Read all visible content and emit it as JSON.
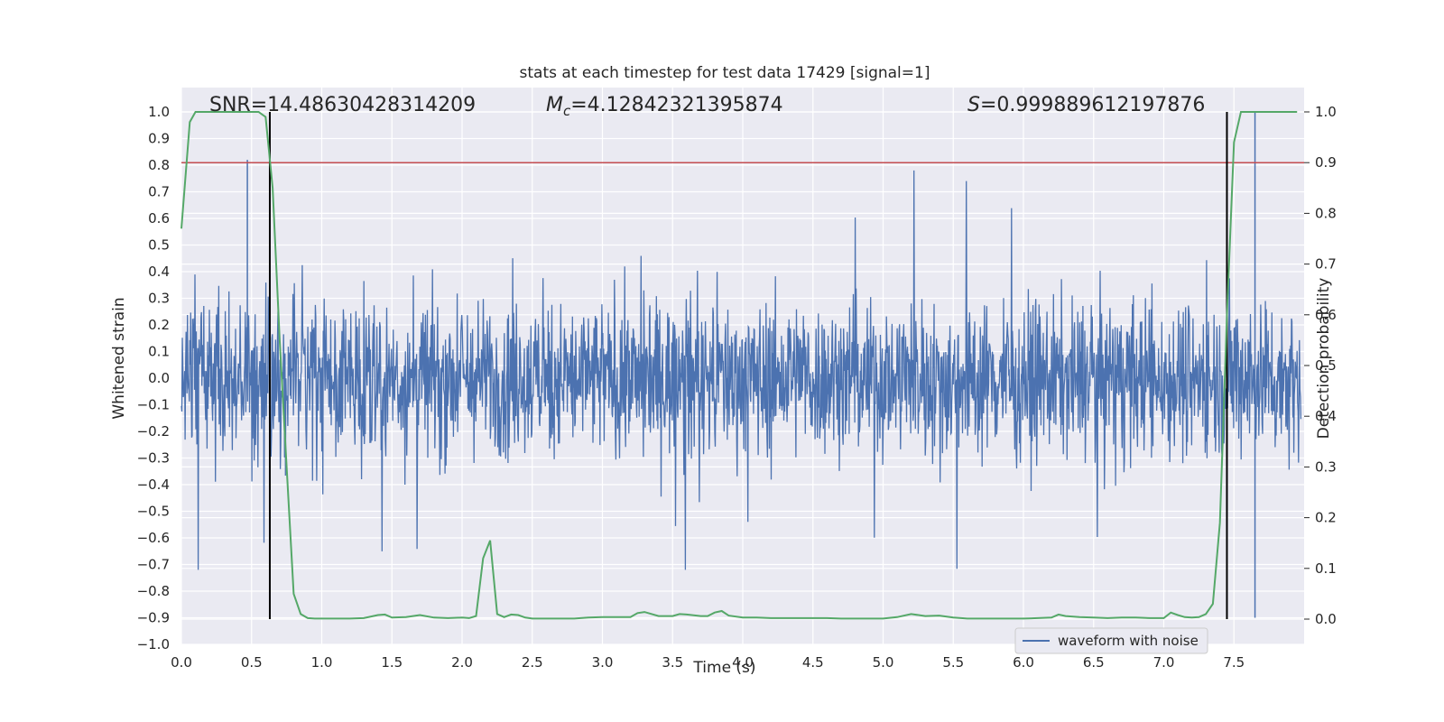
{
  "chart_data": {
    "type": "line",
    "title": "stats at each timestep for test data 17429 [signal=1]",
    "xlabel": "Time (s)",
    "ylabel_left": "Whitened strain",
    "ylabel_right": "Detection probability",
    "xlim": [
      0.0,
      8.0
    ],
    "ylim_left": [
      -1.0,
      1.1
    ],
    "ylim_right": [
      -0.05,
      1.05
    ],
    "x_ticks": [
      "0.0",
      "0.5",
      "1.0",
      "1.5",
      "2.0",
      "2.5",
      "3.0",
      "3.5",
      "4.0",
      "4.5",
      "5.0",
      "5.5",
      "6.0",
      "6.5",
      "7.0",
      "7.5"
    ],
    "y_ticks_left": [
      "1.0",
      "0.9",
      "0.8",
      "0.7",
      "0.6",
      "0.5",
      "0.4",
      "0.3",
      "0.2",
      "0.1",
      "0.0",
      "-0.1",
      "-0.2",
      "-0.3",
      "-0.4",
      "-0.5",
      "-0.6",
      "-0.7",
      "-0.8",
      "-0.9",
      "-1.0"
    ],
    "y_ticks_right": [
      "1.0",
      "0.9",
      "0.8",
      "0.7",
      "0.6",
      "0.5",
      "0.4",
      "0.3",
      "0.2",
      "0.1",
      "0.0"
    ],
    "grid": true,
    "legend_position": "lower-right",
    "annotations": {
      "snr": "SNR=14.48630428314209",
      "mc_symbol": "M",
      "mc_sub": "c",
      "mc_value": "=4.12842321395874",
      "s_symbol": "S",
      "s_value": "=0.999889612197876"
    },
    "series": [
      {
        "name": "waveform with noise",
        "color": "#4c72b0",
        "note_envelope": [
          [
            0.0,
            -0.45,
            0.5
          ],
          [
            7.6,
            -0.9,
            1.0
          ]
        ],
        "peak_x": [
          0.47,
          7.65
        ],
        "peak_y": [
          0.82,
          1.0
        ]
      },
      {
        "color": "#55a868",
        "axis": "right",
        "x": [
          0.0,
          0.06,
          0.1,
          0.2,
          0.3,
          0.4,
          0.5,
          0.55,
          0.6,
          0.65,
          0.7,
          0.75,
          0.8,
          0.85,
          0.9,
          0.95,
          1.0,
          1.1,
          1.2,
          1.3,
          1.4,
          1.45,
          1.5,
          1.6,
          1.7,
          1.8,
          1.9,
          2.0,
          2.05,
          2.1,
          2.15,
          2.2,
          2.25,
          2.3,
          2.35,
          2.4,
          2.45,
          2.5,
          2.6,
          2.7,
          2.8,
          2.9,
          3.0,
          3.1,
          3.2,
          3.25,
          3.3,
          3.4,
          3.5,
          3.55,
          3.6,
          3.7,
          3.75,
          3.8,
          3.85,
          3.9,
          4.0,
          4.1,
          4.2,
          4.3,
          4.4,
          4.5,
          4.6,
          4.7,
          4.8,
          4.9,
          5.0,
          5.1,
          5.2,
          5.3,
          5.4,
          5.5,
          5.6,
          5.7,
          5.8,
          5.9,
          6.0,
          6.1,
          6.2,
          6.25,
          6.3,
          6.4,
          6.5,
          6.6,
          6.7,
          6.8,
          6.9,
          7.0,
          7.05,
          7.1,
          7.15,
          7.2,
          7.25,
          7.3,
          7.35,
          7.4,
          7.45,
          7.5,
          7.55,
          7.6,
          7.7,
          7.8,
          7.95
        ],
        "y": [
          0.77,
          0.98,
          1.0,
          1.0,
          1.0,
          1.0,
          1.0,
          1.0,
          0.99,
          0.85,
          0.55,
          0.3,
          0.05,
          0.01,
          0.002,
          0.001,
          0.001,
          0.001,
          0.001,
          0.002,
          0.008,
          0.009,
          0.003,
          0.004,
          0.008,
          0.003,
          0.002,
          0.003,
          0.002,
          0.006,
          0.12,
          0.155,
          0.01,
          0.004,
          0.009,
          0.008,
          0.003,
          0.001,
          0.001,
          0.001,
          0.001,
          0.003,
          0.004,
          0.004,
          0.004,
          0.012,
          0.014,
          0.006,
          0.006,
          0.01,
          0.009,
          0.006,
          0.006,
          0.013,
          0.016,
          0.007,
          0.003,
          0.003,
          0.002,
          0.002,
          0.002,
          0.002,
          0.002,
          0.001,
          0.001,
          0.001,
          0.001,
          0.004,
          0.01,
          0.006,
          0.007,
          0.003,
          0.001,
          0.001,
          0.001,
          0.001,
          0.001,
          0.002,
          0.003,
          0.009,
          0.006,
          0.004,
          0.003,
          0.002,
          0.003,
          0.003,
          0.002,
          0.002,
          0.013,
          0.008,
          0.004,
          0.003,
          0.004,
          0.01,
          0.03,
          0.19,
          0.6,
          0.94,
          1.0,
          1.0,
          1.0,
          1.0,
          1.0
        ]
      }
    ],
    "threshold": {
      "color": "#c44e52",
      "right_value": 0.9
    },
    "vlines": {
      "color": "#000000",
      "x": [
        0.63,
        7.45
      ],
      "right_range": [
        0.0,
        1.0
      ]
    }
  },
  "legend": {
    "label": "waveform with noise"
  }
}
